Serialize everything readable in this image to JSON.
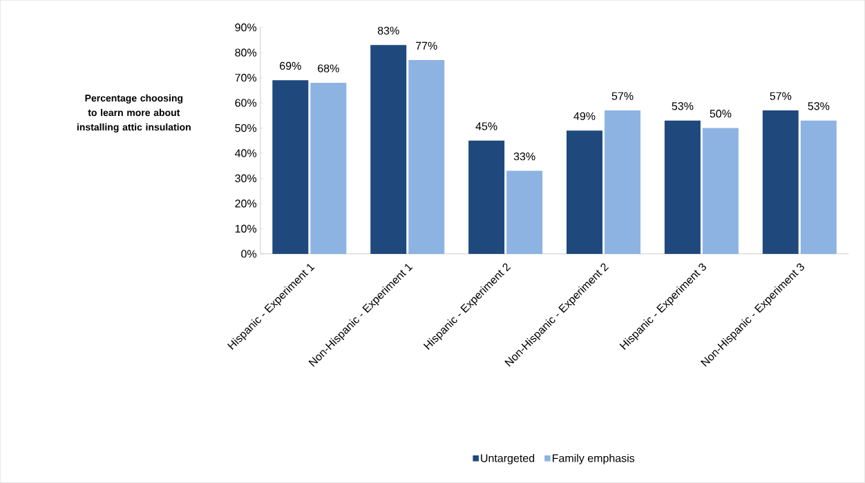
{
  "chart_data": {
    "type": "bar",
    "ylabel": "Percentage choosing to learn more about installing attic insulation",
    "categories": [
      "Hispanic - Experiment 1",
      "Non-Hispanic - Experiment 1",
      "Hispanic - Experiment 2",
      "Non-Hispanic - Experiment 2",
      "Hispanic - Experiment 3",
      "Non-Hispanic - Experiment 3"
    ],
    "series": [
      {
        "name": "Untargeted",
        "color": "#1f497d",
        "values": [
          69,
          83,
          45,
          49,
          53,
          57
        ],
        "value_labels": [
          "69%",
          "83%",
          "45%",
          "49%",
          "53%",
          "57%"
        ]
      },
      {
        "name": "Family emphasis",
        "color": "#8db3e2",
        "values": [
          68,
          77,
          33,
          57,
          50,
          53
        ],
        "value_labels": [
          "68%",
          "77%",
          "33%",
          "57%",
          "50%",
          "53%"
        ]
      }
    ],
    "ylim": [
      0,
      90
    ],
    "yticks": [
      {
        "value": 0,
        "label": "0%"
      },
      {
        "value": 10,
        "label": "10%"
      },
      {
        "value": 20,
        "label": "20%"
      },
      {
        "value": 30,
        "label": "30%"
      },
      {
        "value": 40,
        "label": "40%"
      },
      {
        "value": 50,
        "label": "50%"
      },
      {
        "value": 60,
        "label": "60%"
      },
      {
        "value": 70,
        "label": "70%"
      },
      {
        "value": 80,
        "label": "80%"
      },
      {
        "value": 90,
        "label": "90%"
      }
    ],
    "grid": false,
    "legend": "bottom"
  }
}
